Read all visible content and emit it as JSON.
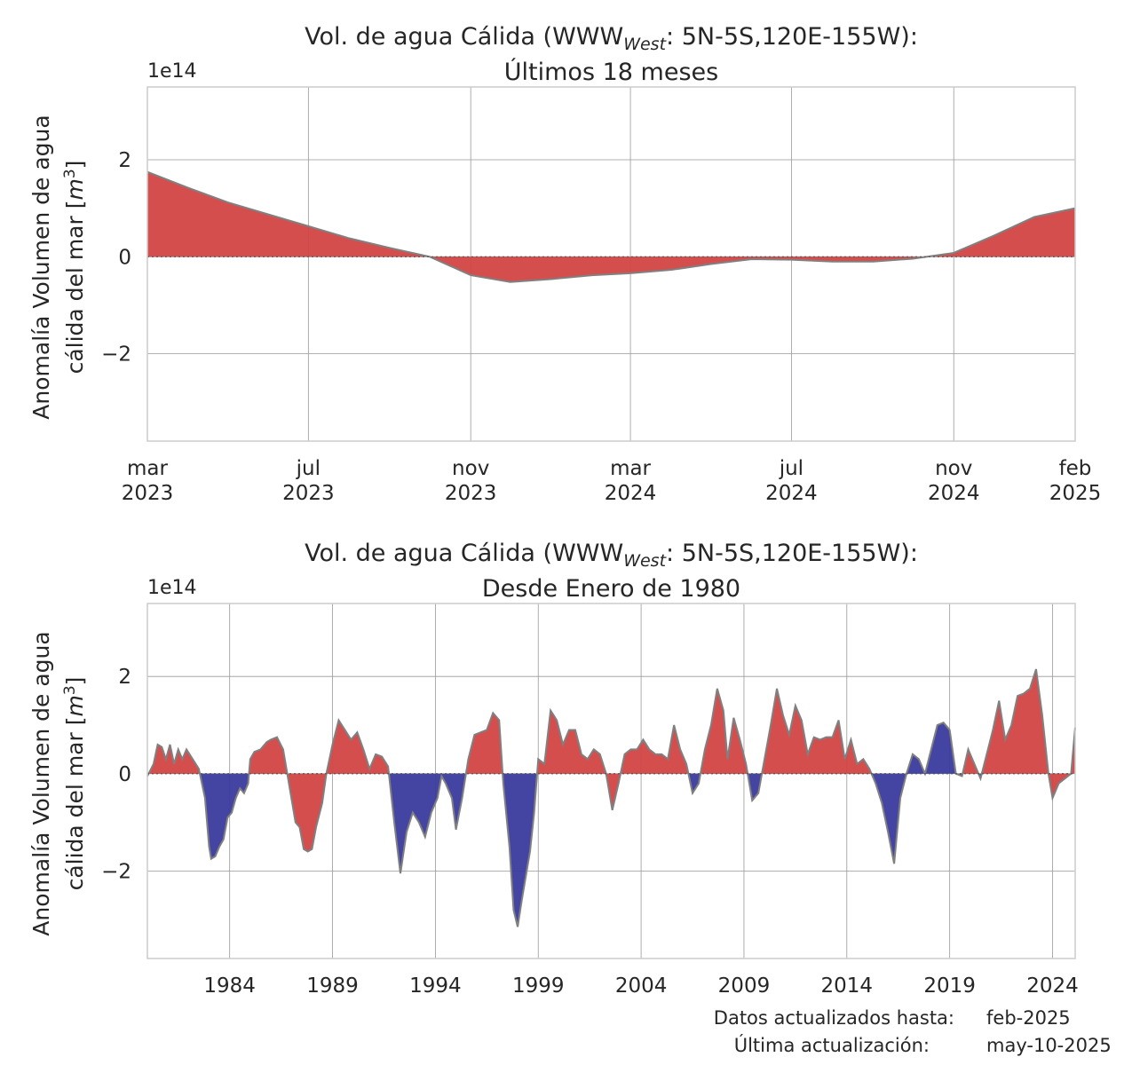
{
  "colors": {
    "positive": "#d24545",
    "negative": "#3a3a9e",
    "line": "#808080",
    "grid": "#999999",
    "frame": "#cccccc",
    "zero_line": "#555555"
  },
  "chart_data": [
    {
      "type": "area",
      "title_prefix": "Vol. de agua Cálida (WWW",
      "title_sub": "West",
      "title_suffix": ": 5N-5S,120E-155W):",
      "title_line2": "Últimos 18 meses",
      "offset_label": "1e14",
      "ylabel_line1": "Anomalía Volumen de agua",
      "ylabel_line2": "cálida del mar [",
      "ylabel_unit": "m",
      "ylabel_exp": "3",
      "ylabel_end": "]",
      "ylim": [
        -3.8,
        3.5
      ],
      "yticks": [
        2,
        0,
        -2
      ],
      "ytick_labels": [
        "2",
        "0",
        "−2"
      ],
      "xlim": [
        "2023-03-01",
        "2025-02-01"
      ],
      "xticks": [
        {
          "date": "2023-03-01",
          "label1": "mar",
          "label2": "2023"
        },
        {
          "date": "2023-07-01",
          "label1": "jul",
          "label2": "2023"
        },
        {
          "date": "2023-11-01",
          "label1": "nov",
          "label2": "2023"
        },
        {
          "date": "2024-03-01",
          "label1": "mar",
          "label2": "2024"
        },
        {
          "date": "2024-07-01",
          "label1": "jul",
          "label2": "2024"
        },
        {
          "date": "2024-11-01",
          "label1": "nov",
          "label2": "2024"
        },
        {
          "date": "2025-02-01",
          "label1": "feb",
          "label2": "2025"
        }
      ],
      "grid": true,
      "series": [
        {
          "x": [
            "2023-03-01",
            "2023-04-01",
            "2023-05-01",
            "2023-06-01",
            "2023-07-01",
            "2023-08-01",
            "2023-09-01",
            "2023-10-01",
            "2023-11-01",
            "2023-12-01",
            "2024-01-01",
            "2024-02-01",
            "2024-03-01",
            "2024-04-01",
            "2024-05-01",
            "2024-06-01",
            "2024-07-01",
            "2024-08-01",
            "2024-09-01",
            "2024-10-01",
            "2024-11-01",
            "2024-12-01",
            "2025-01-01",
            "2025-02-01"
          ],
          "y": [
            1.75,
            1.42,
            1.12,
            0.87,
            0.63,
            0.38,
            0.18,
            0.0,
            -0.38,
            -0.52,
            -0.46,
            -0.38,
            -0.34,
            -0.27,
            -0.15,
            -0.05,
            -0.06,
            -0.1,
            -0.1,
            -0.04,
            0.08,
            0.43,
            0.82,
            1.0
          ]
        }
      ]
    },
    {
      "type": "area",
      "title_prefix": "Vol. de agua Cálida (WWW",
      "title_sub": "West",
      "title_suffix": ": 5N-5S,120E-155W):",
      "title_line2": "Desde Enero de 1980",
      "offset_label": "1e14",
      "ylabel_line1": "Anomalía Volumen de agua",
      "ylabel_line2": "cálida del mar [",
      "ylabel_unit": "m",
      "ylabel_exp": "3",
      "ylabel_end": "]",
      "ylim": [
        -3.8,
        3.5
      ],
      "yticks": [
        2,
        0,
        -2
      ],
      "ytick_labels": [
        "2",
        "0",
        "−2"
      ],
      "xlim": [
        1980.0,
        2025.1
      ],
      "xticks": [
        {
          "value": 1984,
          "label": "1984"
        },
        {
          "value": 1989,
          "label": "1989"
        },
        {
          "value": 1994,
          "label": "1994"
        },
        {
          "value": 1999,
          "label": "1999"
        },
        {
          "value": 2004,
          "label": "2004"
        },
        {
          "value": 2009,
          "label": "2009"
        },
        {
          "value": 2014,
          "label": "2014"
        },
        {
          "value": 2019,
          "label": "2019"
        },
        {
          "value": 2024,
          "label": "2024"
        }
      ],
      "grid": true,
      "series": [
        {
          "x": [
            1980.0,
            1980.3,
            1980.5,
            1980.7,
            1980.9,
            1981.1,
            1981.3,
            1981.5,
            1981.7,
            1981.9,
            1982.2,
            1982.5,
            1982.8,
            1983.0,
            1983.1,
            1983.3,
            1983.5,
            1983.7,
            1983.9,
            1984.1,
            1984.3,
            1984.5,
            1984.7,
            1984.9,
            1985.0,
            1985.2,
            1985.5,
            1985.8,
            1986.0,
            1986.3,
            1986.6,
            1986.8,
            1987.0,
            1987.2,
            1987.4,
            1987.6,
            1987.8,
            1988.0,
            1988.2,
            1988.5,
            1988.7,
            1989.0,
            1989.3,
            1989.6,
            1989.9,
            1990.2,
            1990.5,
            1990.8,
            1991.1,
            1991.4,
            1991.7,
            1992.0,
            1992.3,
            1992.6,
            1992.9,
            1993.2,
            1993.5,
            1993.8,
            1994.1,
            1994.3,
            1994.5,
            1994.8,
            1995.0,
            1995.3,
            1995.6,
            1995.9,
            1996.2,
            1996.5,
            1996.8,
            1997.1,
            1997.3,
            1997.6,
            1997.8,
            1998.0,
            1998.2,
            1998.4,
            1998.6,
            1998.8,
            1999.0,
            1999.3,
            1999.6,
            1999.9,
            2000.2,
            2000.5,
            2000.8,
            2001.1,
            2001.4,
            2001.7,
            2002.0,
            2002.3,
            2002.6,
            2002.9,
            2003.2,
            2003.5,
            2003.8,
            2004.1,
            2004.4,
            2004.7,
            2005.0,
            2005.3,
            2005.6,
            2005.9,
            2006.2,
            2006.5,
            2006.8,
            2007.1,
            2007.4,
            2007.7,
            2008.0,
            2008.2,
            2008.5,
            2008.8,
            2009.1,
            2009.4,
            2009.7,
            2010.0,
            2010.3,
            2010.6,
            2010.9,
            2011.2,
            2011.5,
            2011.8,
            2012.1,
            2012.4,
            2012.7,
            2013.0,
            2013.3,
            2013.6,
            2013.9,
            2014.2,
            2014.5,
            2014.8,
            2015.1,
            2015.4,
            2015.7,
            2016.0,
            2016.3,
            2016.6,
            2016.9,
            2017.2,
            2017.5,
            2017.8,
            2018.1,
            2018.4,
            2018.7,
            2019.0,
            2019.3,
            2019.6,
            2019.9,
            2020.2,
            2020.5,
            2020.8,
            2021.1,
            2021.4,
            2021.7,
            2022.0,
            2022.3,
            2022.6,
            2022.9,
            2023.2,
            2023.5,
            2023.8,
            2024.0,
            2024.3,
            2024.6,
            2024.9,
            2025.1
          ],
          "y": [
            -0.05,
            0.2,
            0.6,
            0.55,
            0.3,
            0.6,
            0.2,
            0.5,
            0.3,
            0.5,
            0.3,
            0.1,
            -0.5,
            -1.5,
            -1.75,
            -1.7,
            -1.5,
            -1.35,
            -0.9,
            -0.8,
            -0.5,
            -0.3,
            -0.4,
            -0.2,
            0.3,
            0.45,
            0.5,
            0.65,
            0.7,
            0.75,
            0.5,
            0.0,
            -0.5,
            -1.0,
            -1.1,
            -1.55,
            -1.6,
            -1.55,
            -1.1,
            -0.6,
            0.0,
            0.6,
            1.1,
            0.9,
            0.7,
            0.85,
            0.5,
            0.1,
            0.4,
            0.35,
            0.15,
            -1.0,
            -2.05,
            -1.2,
            -0.8,
            -1.0,
            -1.3,
            -0.8,
            -0.5,
            -0.05,
            -0.2,
            -0.5,
            -1.15,
            -0.5,
            0.3,
            0.8,
            0.85,
            0.9,
            1.25,
            1.1,
            -0.2,
            -1.5,
            -2.8,
            -3.15,
            -2.6,
            -2.1,
            -1.6,
            -0.8,
            0.3,
            0.2,
            1.3,
            1.1,
            0.6,
            0.9,
            0.9,
            0.4,
            0.3,
            0.5,
            0.4,
            0.0,
            -0.75,
            -0.2,
            0.4,
            0.5,
            0.5,
            0.7,
            0.5,
            0.4,
            0.4,
            0.3,
            1.0,
            0.5,
            0.2,
            -0.4,
            -0.2,
            0.5,
            1.0,
            1.75,
            1.3,
            0.3,
            1.15,
            0.7,
            0.2,
            -0.55,
            -0.4,
            0.3,
            1.0,
            1.75,
            1.2,
            0.8,
            1.4,
            1.1,
            0.4,
            0.75,
            0.7,
            0.75,
            0.75,
            1.1,
            0.3,
            0.7,
            0.2,
            0.3,
            0.1,
            -0.2,
            -0.6,
            -1.2,
            -1.85,
            -0.5,
            0.0,
            0.4,
            0.3,
            0.0,
            0.5,
            1.0,
            1.05,
            0.9,
            0.0,
            -0.05,
            0.5,
            0.2,
            -0.1,
            0.4,
            0.9,
            1.5,
            0.7,
            1.0,
            1.6,
            1.65,
            1.75,
            2.15,
            1.2,
            0.0,
            -0.5,
            -0.2,
            -0.1,
            0.0,
            0.95
          ]
        }
      ]
    }
  ],
  "footer": {
    "updated_label": "Datos actualizados hasta:",
    "updated_value": "feb-2025",
    "last_label": "Última actualización:",
    "last_value": "may-10-2025"
  }
}
